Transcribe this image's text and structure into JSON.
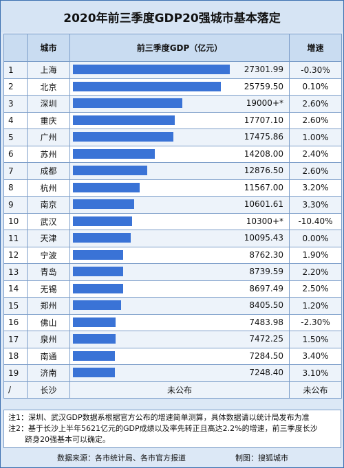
{
  "title": "2020年前三季度GDP20强城市基本落定",
  "headers": {
    "rank": "",
    "city": "城市",
    "gdp": "前三季度GDP（亿元）",
    "growth": "增速"
  },
  "rows": [
    {
      "rank": "1",
      "city": "上海",
      "gdp_label": "27301.99",
      "growth": "-0.30%"
    },
    {
      "rank": "2",
      "city": "北京",
      "gdp_label": "25759.50",
      "growth": "0.10%"
    },
    {
      "rank": "3",
      "city": "深圳",
      "gdp_label": "19000+*",
      "growth": "2.60%"
    },
    {
      "rank": "4",
      "city": "重庆",
      "gdp_label": "17707.10",
      "growth": "2.60%"
    },
    {
      "rank": "5",
      "city": "广州",
      "gdp_label": "17475.86",
      "growth": "1.00%"
    },
    {
      "rank": "6",
      "city": "苏州",
      "gdp_label": "14208.00",
      "growth": "2.40%"
    },
    {
      "rank": "7",
      "city": "成都",
      "gdp_label": "12876.50",
      "growth": "2.60%"
    },
    {
      "rank": "8",
      "city": "杭州",
      "gdp_label": "11567.00",
      "growth": "3.20%"
    },
    {
      "rank": "9",
      "city": "南京",
      "gdp_label": "10601.61",
      "growth": "3.30%"
    },
    {
      "rank": "10",
      "city": "武汉",
      "gdp_label": "10300+*",
      "growth": "-10.40%"
    },
    {
      "rank": "11",
      "city": "天津",
      "gdp_label": "10095.43",
      "growth": "0.00%"
    },
    {
      "rank": "12",
      "city": "宁波",
      "gdp_label": "8762.30",
      "growth": "1.90%"
    },
    {
      "rank": "13",
      "city": "青岛",
      "gdp_label": "8739.59",
      "growth": "2.20%"
    },
    {
      "rank": "14",
      "city": "无锡",
      "gdp_label": "8697.49",
      "growth": "2.50%"
    },
    {
      "rank": "15",
      "city": "郑州",
      "gdp_label": "8405.50",
      "growth": "1.20%"
    },
    {
      "rank": "16",
      "city": "佛山",
      "gdp_label": "7483.98",
      "growth": "-2.30%"
    },
    {
      "rank": "17",
      "city": "泉州",
      "gdp_label": "7472.25",
      "growth": "1.50%"
    },
    {
      "rank": "18",
      "city": "南通",
      "gdp_label": "7284.50",
      "growth": "3.40%"
    },
    {
      "rank": "19",
      "city": "济南",
      "gdp_label": "7248.40",
      "growth": "3.10%"
    }
  ],
  "last_row": {
    "rank": "/",
    "city": "长沙",
    "gdp_label": "未公布",
    "growth": "未公布"
  },
  "notes": {
    "note1": "注1：深圳、武汉GDP数据系根据官方公布的增速简单测算，具体数据请以统计局发布为准",
    "note2_line1": "注2：基于长沙上半年5621亿元的GDP成绩以及率先转正且高达2.2%的增速，前三季度长沙",
    "note2_line2": "跻身20强基本可以确定。"
  },
  "footer": {
    "source": "数据来源：各市统计局、各市官方报道",
    "maker": "制图：搜狐城市"
  },
  "colors": {
    "bar": "#3a73d6",
    "header_bg": "#c9dcf1",
    "title_bg": "#d6e4f4",
    "border": "#7a9cc8"
  },
  "chart_data": {
    "type": "bar",
    "title": "2020年前三季度GDP20强城市基本落定",
    "xlabel": "前三季度GDP（亿元）",
    "categories": [
      "上海",
      "北京",
      "深圳",
      "重庆",
      "广州",
      "苏州",
      "成都",
      "杭州",
      "南京",
      "武汉",
      "天津",
      "宁波",
      "青岛",
      "无锡",
      "郑州",
      "佛山",
      "泉州",
      "南通",
      "济南"
    ],
    "values": [
      27301.99,
      25759.5,
      19000,
      17707.1,
      17475.86,
      14208.0,
      12876.5,
      11567.0,
      10601.61,
      10300,
      10095.43,
      8762.3,
      8739.59,
      8697.49,
      8405.5,
      7483.98,
      7472.25,
      7284.5,
      7248.4
    ],
    "growth": [
      "-0.30%",
      "0.10%",
      "2.60%",
      "2.60%",
      "1.00%",
      "2.40%",
      "2.60%",
      "3.20%",
      "3.30%",
      "-10.40%",
      "0.00%",
      "1.90%",
      "2.20%",
      "2.50%",
      "1.20%",
      "-2.30%",
      "1.50%",
      "3.40%",
      "3.10%"
    ],
    "orientation": "horizontal"
  }
}
